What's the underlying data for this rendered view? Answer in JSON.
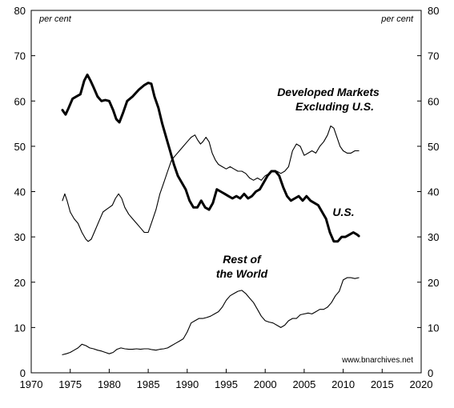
{
  "chart_data": {
    "type": "line",
    "title": "",
    "xlabel": "",
    "ylabel": "",
    "xlim": [
      1970,
      2020
    ],
    "ylim": [
      0,
      80
    ],
    "grid": false,
    "x_ticks": [
      "1970",
      "1975",
      "1980",
      "1985",
      "1990",
      "1995",
      "2000",
      "2005",
      "2010",
      "2015",
      "2020"
    ],
    "y_ticks": [
      "0",
      "10",
      "20",
      "30",
      "40",
      "50",
      "60",
      "70",
      "80"
    ],
    "unit_left": "per cent",
    "unit_right": "per cent",
    "source_note": "www.bnarchives.net",
    "annotations": {
      "developed_line1": "Developed Markets",
      "developed_line2": "Excluding U.S.",
      "us": "U.S.",
      "row_line1": "Rest of",
      "row_line2": "the World"
    },
    "series": [
      {
        "key": "us",
        "weight": "thick",
        "x": [
          1974.0,
          1974.4,
          1974.8,
          1975.3,
          1975.8,
          1976.3,
          1976.8,
          1977.2,
          1977.6,
          1978.0,
          1978.5,
          1979.0,
          1979.5,
          1980.0,
          1980.5,
          1980.9,
          1981.3,
          1981.8,
          1982.3,
          1983.0,
          1983.8,
          1984.5,
          1985.0,
          1985.4,
          1985.8,
          1986.3,
          1986.8,
          1987.3,
          1987.8,
          1988.3,
          1988.8,
          1989.3,
          1989.8,
          1990.3,
          1990.8,
          1991.3,
          1991.8,
          1992.3,
          1992.8,
          1993.3,
          1993.8,
          1994.3,
          1994.8,
          1995.3,
          1995.8,
          1996.3,
          1996.8,
          1997.3,
          1997.8,
          1998.3,
          1998.8,
          1999.3,
          1999.8,
          2000.3,
          2000.8,
          2001.3,
          2001.8,
          2002.3,
          2002.8,
          2003.3,
          2003.8,
          2004.3,
          2004.8,
          2005.3,
          2005.8,
          2006.3,
          2006.8,
          2007.3,
          2007.8,
          2008.3,
          2008.8,
          2009.3,
          2009.8,
          2010.3,
          2010.8,
          2011.3,
          2011.8,
          2012.0
        ],
        "values": [
          58.0,
          57.0,
          58.5,
          60.5,
          61.0,
          61.5,
          64.5,
          65.8,
          64.5,
          63.0,
          61.0,
          60.0,
          60.2,
          60.0,
          58.0,
          56.0,
          55.3,
          57.5,
          60.0,
          61.0,
          62.5,
          63.5,
          64.0,
          63.8,
          61.0,
          58.5,
          55.0,
          52.0,
          49.0,
          46.0,
          43.5,
          42.0,
          40.5,
          38.0,
          36.5,
          36.5,
          38.0,
          36.5,
          36.0,
          37.5,
          40.5,
          40.0,
          39.5,
          39.0,
          38.5,
          39.0,
          38.5,
          39.5,
          38.5,
          39.0,
          40.0,
          40.5,
          42.0,
          43.5,
          44.5,
          44.5,
          43.5,
          41.0,
          39.0,
          38.0,
          38.5,
          39.0,
          38.0,
          39.0,
          38.0,
          37.5,
          37.0,
          35.5,
          34.0,
          31.0,
          29.0,
          29.0,
          30.0,
          30.0,
          30.5,
          31.0,
          30.5,
          30.2
        ]
      },
      {
        "key": "developed",
        "weight": "thin",
        "x": [
          1974.0,
          1974.3,
          1974.6,
          1975.0,
          1975.5,
          1976.0,
          1976.5,
          1977.0,
          1977.3,
          1977.7,
          1978.2,
          1978.7,
          1979.2,
          1979.6,
          1980.0,
          1980.4,
          1980.8,
          1981.2,
          1981.6,
          1982.0,
          1982.5,
          1983.0,
          1983.5,
          1984.0,
          1984.5,
          1985.0,
          1985.5,
          1986.0,
          1986.5,
          1987.0,
          1987.5,
          1988.0,
          1988.5,
          1989.0,
          1989.5,
          1990.0,
          1990.5,
          1991.0,
          1991.3,
          1991.7,
          1992.0,
          1992.4,
          1992.8,
          1993.2,
          1993.6,
          1994.0,
          1994.5,
          1995.0,
          1995.5,
          1996.0,
          1996.5,
          1997.0,
          1997.5,
          1998.0,
          1998.5,
          1999.0,
          1999.5,
          2000.0,
          2000.5,
          2001.0,
          2001.5,
          2002.0,
          2002.5,
          2003.0,
          2003.5,
          2004.0,
          2004.5,
          2005.0,
          2005.5,
          2006.0,
          2006.5,
          2007.0,
          2007.5,
          2008.0,
          2008.4,
          2008.8,
          2009.2,
          2009.6,
          2010.0,
          2010.5,
          2011.0,
          2011.5,
          2012.0
        ],
        "values": [
          38.0,
          39.5,
          38.0,
          35.5,
          34.0,
          33.0,
          31.0,
          29.5,
          29.0,
          29.5,
          31.5,
          33.5,
          35.5,
          36.0,
          36.5,
          37.0,
          38.5,
          39.5,
          38.5,
          36.5,
          35.0,
          34.0,
          33.0,
          32.0,
          31.0,
          31.0,
          33.5,
          36.0,
          39.5,
          42.0,
          44.5,
          47.0,
          48.0,
          49.0,
          50.0,
          51.0,
          52.0,
          52.5,
          51.5,
          50.5,
          51.0,
          52.0,
          51.0,
          48.5,
          47.0,
          46.0,
          45.5,
          45.0,
          45.5,
          45.0,
          44.5,
          44.5,
          44.0,
          43.0,
          42.5,
          43.0,
          42.5,
          43.5,
          44.0,
          44.5,
          44.5,
          44.0,
          44.5,
          45.5,
          49.0,
          50.5,
          50.0,
          48.0,
          48.5,
          49.0,
          48.5,
          50.0,
          51.0,
          52.5,
          54.5,
          54.0,
          52.0,
          50.0,
          49.0,
          48.5,
          48.5,
          49.0,
          49.0
        ]
      },
      {
        "key": "rest",
        "weight": "thin",
        "x": [
          1974.0,
          1974.5,
          1975.0,
          1975.5,
          1976.0,
          1976.5,
          1977.0,
          1977.5,
          1978.0,
          1978.5,
          1979.0,
          1979.5,
          1980.0,
          1980.5,
          1981.0,
          1981.5,
          1982.0,
          1982.5,
          1983.0,
          1983.5,
          1984.0,
          1984.5,
          1985.0,
          1985.5,
          1986.0,
          1986.5,
          1987.0,
          1987.5,
          1988.0,
          1988.5,
          1989.0,
          1989.5,
          1990.0,
          1990.5,
          1991.0,
          1991.5,
          1992.0,
          1992.5,
          1993.0,
          1993.5,
          1994.0,
          1994.5,
          1995.0,
          1995.5,
          1996.0,
          1996.5,
          1997.0,
          1997.5,
          1998.0,
          1998.5,
          1999.0,
          1999.5,
          2000.0,
          2000.5,
          2001.0,
          2001.5,
          2002.0,
          2002.5,
          2003.0,
          2003.5,
          2004.0,
          2004.5,
          2005.0,
          2005.5,
          2006.0,
          2006.5,
          2007.0,
          2007.5,
          2008.0,
          2008.5,
          2009.0,
          2009.5,
          2010.0,
          2010.5,
          2011.0,
          2011.5,
          2012.0
        ],
        "values": [
          4.0,
          4.2,
          4.5,
          5.0,
          5.5,
          6.3,
          6.0,
          5.5,
          5.3,
          5.0,
          4.8,
          4.5,
          4.2,
          4.5,
          5.2,
          5.5,
          5.3,
          5.2,
          5.2,
          5.3,
          5.2,
          5.3,
          5.3,
          5.1,
          5.0,
          5.2,
          5.3,
          5.5,
          6.0,
          6.5,
          7.0,
          7.5,
          9.0,
          11.0,
          11.5,
          12.0,
          12.0,
          12.2,
          12.5,
          13.0,
          13.5,
          14.5,
          16.0,
          17.0,
          17.5,
          18.0,
          18.2,
          17.5,
          16.5,
          15.5,
          14.0,
          12.5,
          11.5,
          11.2,
          11.0,
          10.5,
          10.0,
          10.5,
          11.5,
          12.0,
          12.0,
          12.8,
          13.0,
          13.2,
          13.0,
          13.5,
          14.0,
          14.0,
          14.5,
          15.5,
          17.0,
          18.0,
          20.5,
          21.0,
          21.0,
          20.8,
          21.0
        ]
      }
    ]
  }
}
